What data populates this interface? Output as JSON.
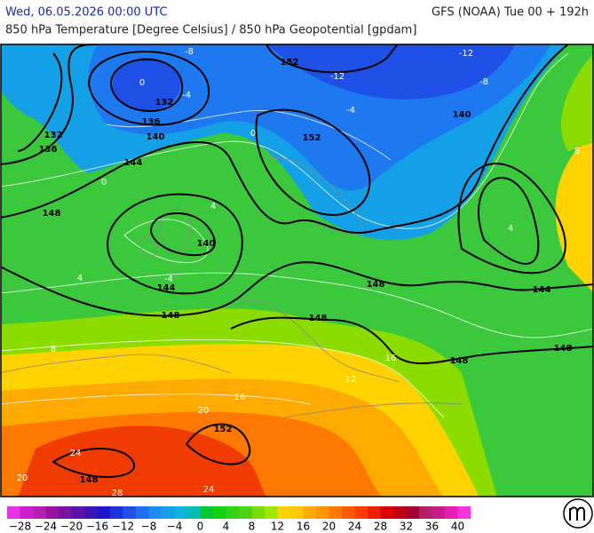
{
  "header": {
    "valid_time": "Wed, 06.05.2026 00:00 UTC",
    "model_run": "GFS (NOAA) Tue 00 + 192h",
    "parameter": "850 hPa Temperature [Degree Celsius] / 850 hPa Geopotential [gpdam]"
  },
  "map": {
    "geopotential_labels": [
      "152",
      "132",
      "136",
      "140",
      "132",
      "136",
      "144",
      "148",
      "140",
      "144",
      "148",
      "152",
      "140",
      "148",
      "148",
      "144",
      "148",
      "148",
      "152",
      "148"
    ],
    "temperature_labels": [
      "-8",
      "0",
      "-4",
      "-12",
      "-8",
      "-4",
      "0",
      "4",
      "0",
      "4",
      "8",
      "4",
      "8",
      "12",
      "16",
      "20",
      "24",
      "24",
      "28",
      "20",
      "16",
      "-4",
      "-12"
    ]
  },
  "colorbar": {
    "colors": [
      "#e632e6",
      "#cd1ecd",
      "#b41eb4",
      "#9614a0",
      "#7814a0",
      "#5a14aa",
      "#3c14b4",
      "#1e14c8",
      "#1e32dc",
      "#1e50e6",
      "#1e6ef0",
      "#1e8cf0",
      "#14a0e6",
      "#0ab4dc",
      "#00beb4",
      "#00c832",
      "#14d214",
      "#32d214",
      "#50d214",
      "#78dc00",
      "#a0e600",
      "#ffd200",
      "#ffc800",
      "#ffaa00",
      "#ff9600",
      "#ff7800",
      "#ff5a00",
      "#ff3c00",
      "#f01e00",
      "#dc0000",
      "#be0014",
      "#a00032",
      "#b41e64",
      "#c81e8c",
      "#e61eb4",
      "#ff32dc"
    ],
    "labels": [
      "−28",
      "−24",
      "−20",
      "−16",
      "−12",
      "−8",
      "−4",
      "0",
      "4",
      "8",
      "12",
      "16",
      "20",
      "24",
      "28",
      "32",
      "36",
      "40"
    ]
  }
}
